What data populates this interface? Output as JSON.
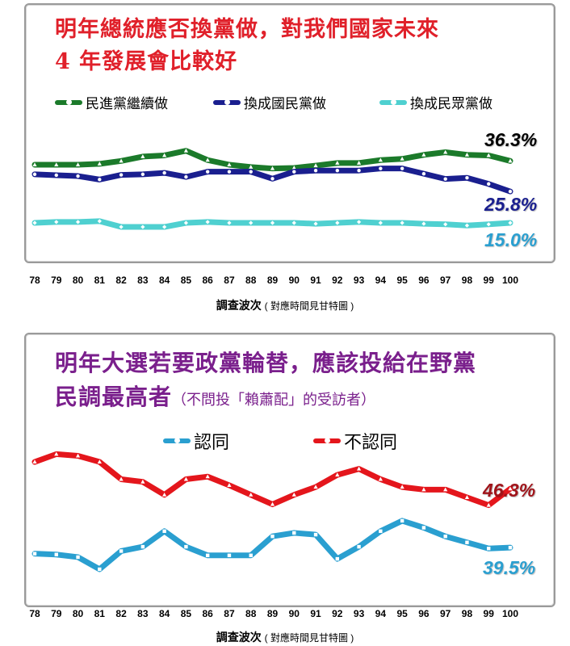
{
  "chart_data": [
    {
      "type": "line",
      "title_line1": "明年總統應否換黨做，對我們國家未來",
      "title_line2": "4 年發展會比較好",
      "categories": [
        "78",
        "79",
        "80",
        "81",
        "82",
        "83",
        "84",
        "85",
        "86",
        "87",
        "88",
        "89",
        "90",
        "91",
        "92",
        "93",
        "94",
        "95",
        "96",
        "97",
        "98",
        "99",
        "100"
      ],
      "xlabel": "調查波次",
      "xlabel_note": "( 對應時間見甘特圖 )",
      "ylim": [
        0,
        50
      ],
      "series": [
        {
          "name": "民進黨繼續做",
          "color": "#1b7a2a",
          "marker": "triangle",
          "values": [
            35.0,
            35.0,
            35.0,
            35.3,
            36.3,
            37.8,
            38.2,
            39.8,
            36.6,
            35.0,
            34.2,
            33.7,
            33.9,
            34.7,
            35.6,
            35.6,
            36.6,
            37.0,
            38.4,
            39.3,
            38.4,
            38.2,
            36.3
          ],
          "end_label": "36.3%"
        },
        {
          "name": "換成國民黨做",
          "color": "#1a1f8f",
          "marker": "circle",
          "values": [
            31.7,
            31.4,
            31.1,
            29.9,
            31.5,
            31.7,
            32.2,
            30.8,
            32.6,
            32.6,
            32.6,
            30.2,
            32.6,
            33.0,
            33.0,
            33.0,
            33.7,
            33.7,
            31.9,
            30.1,
            30.5,
            28.4,
            25.8
          ],
          "end_label": "25.8%"
        },
        {
          "name": "換成民眾黨做",
          "color": "#4fd0d0",
          "marker": "diamond",
          "values": [
            15.0,
            15.3,
            15.3,
            15.6,
            13.6,
            13.6,
            13.6,
            15.0,
            15.3,
            15.0,
            15.0,
            15.0,
            15.0,
            14.7,
            15.0,
            15.3,
            15.0,
            15.0,
            14.7,
            14.5,
            14.1,
            14.5,
            15.0
          ],
          "end_label": "15.0%"
        }
      ]
    },
    {
      "type": "line",
      "title_line1": "明年大選若要政黨輪替，應該投給在野黨",
      "title_line2": "民調最高者",
      "title_note": "（不問投「賴蕭配」的受訪者）",
      "categories": [
        "78",
        "79",
        "80",
        "81",
        "82",
        "83",
        "84",
        "85",
        "86",
        "87",
        "88",
        "89",
        "90",
        "91",
        "92",
        "93",
        "94",
        "95",
        "96",
        "97",
        "98",
        "99",
        "100"
      ],
      "xlabel": "調查波次",
      "xlabel_note": "( 對應時間見甘特圖 )",
      "ylim": [
        30,
        55
      ],
      "series": [
        {
          "name": "認同",
          "color": "#2a9fd0",
          "marker": "square",
          "values": [
            38.8,
            38.7,
            38.4,
            37.0,
            39.1,
            39.6,
            41.4,
            39.6,
            38.6,
            38.6,
            38.6,
            40.8,
            41.2,
            41.0,
            38.2,
            39.6,
            41.4,
            42.6,
            41.8,
            40.8,
            40.1,
            39.4,
            39.5
          ],
          "end_label": "39.5%"
        },
        {
          "name": "不認同",
          "color": "#e4161c",
          "marker": "triangle",
          "values": [
            49.4,
            50.3,
            50.1,
            49.4,
            47.4,
            47.1,
            45.6,
            47.4,
            47.7,
            46.7,
            45.6,
            44.5,
            45.6,
            46.5,
            47.9,
            48.6,
            47.4,
            46.5,
            46.2,
            46.2,
            45.3,
            44.4,
            46.3
          ],
          "end_label": "46.3%"
        }
      ]
    }
  ]
}
